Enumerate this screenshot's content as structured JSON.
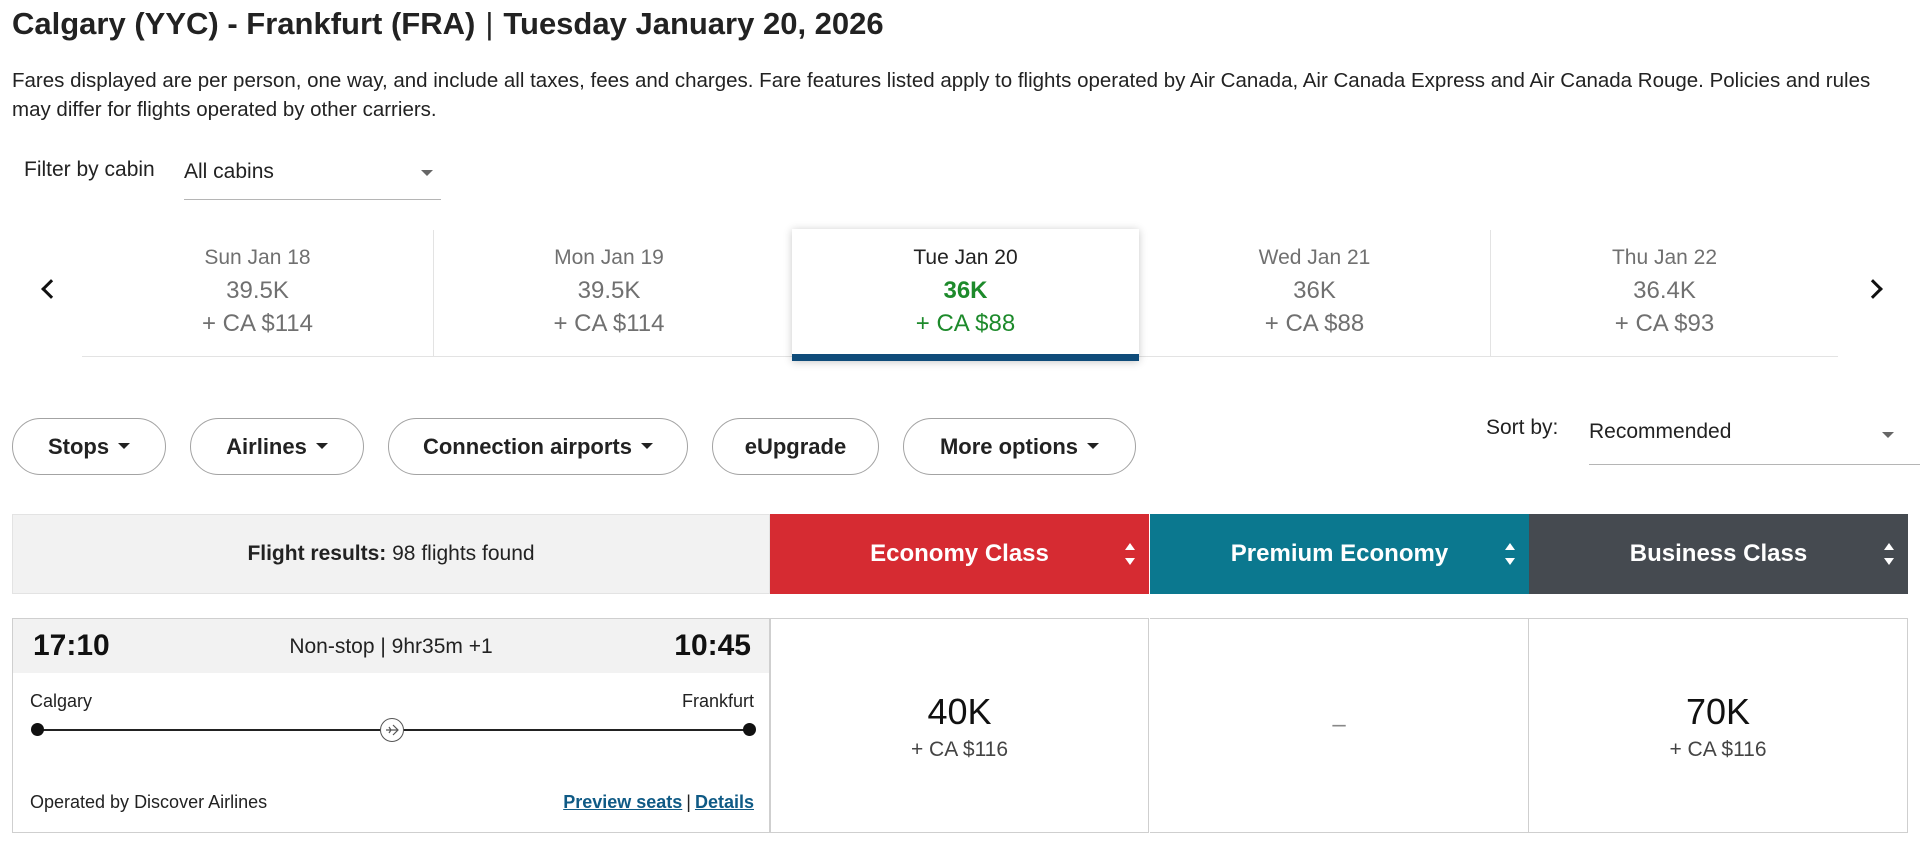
{
  "header": {
    "route": "Calgary (YYC) - Frankfurt (FRA)",
    "separator": "|",
    "date": "Tuesday January 20, 2026"
  },
  "disclaimer": "Fares displayed are per person, one way, and include all taxes, fees and charges. Fare features listed apply to flights operated by Air Canada, Air Canada Express and Air Canada Rouge. Policies and rules may differ for flights operated by other carriers.",
  "cabin_filter": {
    "label": "Filter by cabin",
    "value": "All cabins"
  },
  "dates": [
    {
      "label": "Sun Jan 18",
      "points": "39.5K",
      "cash": "+ CA $114"
    },
    {
      "label": "Mon Jan 19",
      "points": "39.5K",
      "cash": "+ CA $114"
    },
    {
      "label": "Tue Jan 20",
      "points": "36K",
      "cash": "+ CA $88",
      "selected": true
    },
    {
      "label": "Wed Jan 21",
      "points": "36K",
      "cash": "+ CA $88"
    },
    {
      "label": "Thu Jan 22",
      "points": "36.4K",
      "cash": "+ CA $93"
    }
  ],
  "filters": {
    "stops": "Stops",
    "airlines": "Airlines",
    "connection_airports": "Connection airports",
    "eupgrade": "eUpgrade",
    "more_options": "More options"
  },
  "sort": {
    "label": "Sort by:",
    "value": "Recommended"
  },
  "results": {
    "label": "Flight results:",
    "count": "98 flights found"
  },
  "cabins": {
    "economy": "Economy Class",
    "premium": "Premium Economy",
    "business": "Business Class"
  },
  "colors": {
    "economy": "#d62b32",
    "premium": "#0b788f",
    "business": "#454a50",
    "selected_price": "#1d8a2b",
    "selected_underline": "#0f4c7a",
    "link": "#0f5a85"
  },
  "flight": {
    "departure_time": "17:10",
    "arrival_time": "10:45",
    "duration": "Non-stop | 9hr35m +1",
    "origin": "Calgary",
    "destination": "Frankfurt",
    "operated_by": "Operated by Discover Airlines",
    "preview_seats": "Preview seats",
    "link_separator": "|",
    "details": "Details",
    "fares": {
      "economy": {
        "points": "40K",
        "cash": "+ CA $116"
      },
      "premium": {
        "unavailable": "–"
      },
      "business": {
        "points": "70K",
        "cash": "+ CA $116"
      }
    }
  },
  "icons": {
    "prev": "chevron-left-icon",
    "next": "chevron-right-icon",
    "dropdown": "caret-down-icon",
    "sort": "sort-arrows-icon",
    "plane": "plane-icon"
  }
}
